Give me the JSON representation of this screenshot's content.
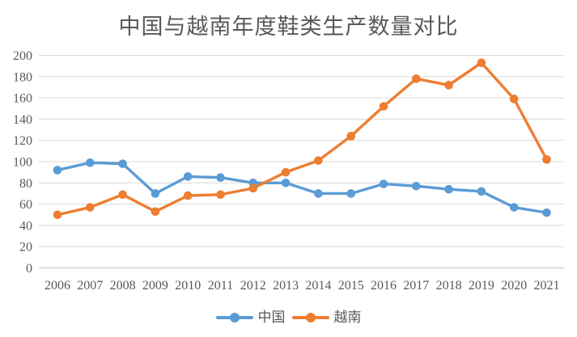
{
  "chart_data": {
    "type": "line",
    "title": "中国与越南年度鞋类生产数量对比",
    "categories": [
      "2006",
      "2007",
      "2008",
      "2009",
      "2010",
      "2011",
      "2012",
      "2013",
      "2014",
      "2015",
      "2016",
      "2017",
      "2018",
      "2019",
      "2020",
      "2021"
    ],
    "series": [
      {
        "name": "中国",
        "color": "#5B9BD5",
        "values": [
          92,
          99,
          98,
          70,
          86,
          85,
          80,
          80,
          70,
          70,
          79,
          77,
          74,
          72,
          57,
          52
        ]
      },
      {
        "name": "越南",
        "color": "#ED7D31",
        "values": [
          50,
          57,
          69,
          53,
          68,
          69,
          75,
          90,
          101,
          124,
          152,
          178,
          172,
          193,
          159,
          102
        ]
      }
    ],
    "xlabel": "",
    "ylabel": "",
    "ylim": [
      0,
      200
    ],
    "yticks": [
      0,
      20,
      40,
      60,
      80,
      100,
      120,
      140,
      160,
      180,
      200
    ],
    "grid": true,
    "legend_position": "bottom",
    "colors": {
      "text": "#595959",
      "gridline": "#D9D9D9",
      "axisline": "#C3C3C3",
      "background": "#FFFFFF"
    }
  }
}
